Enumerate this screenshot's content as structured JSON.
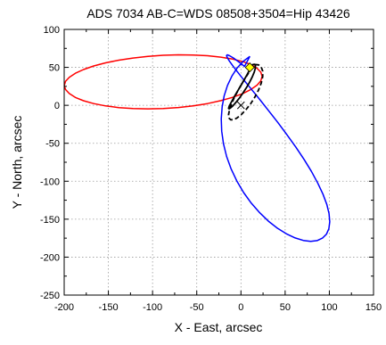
{
  "chart_data": {
    "type": "line",
    "title": "ADS 7034 AB-C=WDS 08508+3504=Hip 43426",
    "xlabel": "X - East, arcsec",
    "ylabel": "Y - North, arcsec",
    "xlim": [
      -200,
      150
    ],
    "ylim": [
      -250,
      100
    ],
    "xticks": [
      -200,
      -150,
      -100,
      -50,
      0,
      50,
      100,
      150
    ],
    "yticks": [
      -250,
      -200,
      -150,
      -100,
      -50,
      0,
      50,
      100
    ],
    "xtick_labels": [
      "-200",
      "-150",
      "-100",
      "-50",
      "0",
      "50",
      "100",
      "150"
    ],
    "ytick_labels": [
      "-250",
      "-200",
      "-150",
      "-100",
      "-50",
      "0",
      "50",
      "100"
    ],
    "grid": true,
    "series": [
      {
        "color": "#ff0000",
        "style": "solid",
        "shape": "ellipse",
        "x": [
          -199.9,
          -198.5,
          -194.3,
          -187.4,
          -178.1,
          -166.6,
          -153.2,
          -138.2,
          -122.1,
          -105.2,
          -88.0,
          -70.8,
          -53.9,
          -37.8,
          -22.8,
          -9.4,
          2.1,
          11.4,
          18.3,
          22.5,
          23.9,
          22.5,
          18.3,
          11.4,
          2.1,
          -9.4,
          -22.8,
          -37.8,
          -53.9,
          -70.8,
          -88.0,
          -105.2,
          -122.1,
          -138.2,
          -153.2,
          -166.6,
          -178.1,
          -187.4,
          -194.3,
          -198.5,
          -199.9
        ],
        "y": [
          26.0,
          31.5,
          36.9,
          42.2,
          47.2,
          51.8,
          55.9,
          59.5,
          62.3,
          64.5,
          65.9,
          66.5,
          66.3,
          65.3,
          63.5,
          60.9,
          57.6,
          53.5,
          48.8,
          43.6,
          38.1,
          32.3,
          26.6,
          20.9,
          15.5,
          10.5,
          6.1,
          2.3,
          -0.7,
          -2.9,
          -4.3,
          -4.7,
          -4.3,
          -3.0,
          -0.8,
          2.3,
          6.0,
          10.4,
          15.5,
          20.8,
          26.0
        ]
      },
      {
        "color": "#0000ff",
        "style": "solid",
        "shape": "ellipse",
        "x": [
          10.1,
          2.5,
          -4.3,
          -10.3,
          -15.2,
          -18.9,
          -21.3,
          -22.3,
          -21.8,
          -19.8,
          -16.2,
          -11.1,
          -4.6,
          3.0,
          11.7,
          21.2,
          31.1,
          41.3,
          51.5,
          61.3,
          70.5,
          78.9,
          86.2,
          92.2,
          96.7,
          99.5,
          100.5,
          99.7,
          97.1,
          92.8,
          86.9,
          79.7,
          71.3,
          62.0,
          52.1,
          42.0,
          31.8,
          22.0,
          12.8,
          4.5,
          -2.6,
          -8.4,
          -12.7,
          -15.3,
          -16.3,
          -15.5,
          -12.9,
          -8.6,
          -2.9,
          4.0,
          10.1
        ],
        "y": [
          64.5,
          57.8,
          49.1,
          38.5,
          26.3,
          12.7,
          -2.1,
          -17.8,
          -34.1,
          -50.7,
          -67.4,
          -83.9,
          -99.8,
          -114.9,
          -128.9,
          -141.5,
          -152.6,
          -161.9,
          -169.3,
          -174.7,
          -178.0,
          -179.2,
          -178.2,
          -175.0,
          -169.8,
          -162.6,
          -153.5,
          -142.7,
          -130.5,
          -117.0,
          -102.4,
          -87.0,
          -71.1,
          -54.9,
          -38.8,
          -23.0,
          -7.8,
          6.6,
          19.8,
          31.7,
          42.1,
          50.8,
          57.6,
          62.6,
          65.5,
          66.5,
          65.4,
          62.4,
          57.6,
          51.3,
          64.5
        ]
      },
      {
        "color": "#000000",
        "style": "solid",
        "shape": "ellipse",
        "x": [
          12.0,
          10.2,
          7.6,
          4.4,
          0.8,
          -2.9,
          -6.4,
          -9.5,
          -11.9,
          -13.5,
          -14.0,
          -13.4,
          -11.7,
          -9.1,
          -5.7,
          -1.8,
          2.2,
          6.2,
          9.8,
          12.8,
          15.0,
          16.3,
          16.4,
          15.4,
          13.4,
          12.0
        ],
        "y": [
          52.1,
          47.5,
          41.7,
          35.0,
          27.8,
          20.5,
          13.5,
          7.2,
          2.0,
          -1.9,
          -4.1,
          -4.7,
          -3.4,
          -0.6,
          3.8,
          9.5,
          16.1,
          23.2,
          30.5,
          37.5,
          43.7,
          48.8,
          52.3,
          54.0,
          53.7,
          52.1
        ]
      },
      {
        "color": "#000000",
        "style": "dashed",
        "shape": "ellipse",
        "x": [
          13.1,
          9.7,
          5.6,
          1.1,
          -3.3,
          -7.4,
          -10.7,
          -13.0,
          -14.0,
          -13.6,
          -11.7,
          -8.6,
          -4.4,
          0.5,
          5.8,
          11.1,
          15.9,
          20.0,
          23.0,
          24.6,
          24.6,
          23.0,
          20.0,
          16.3,
          13.1
        ],
        "y": [
          50.5,
          44.6,
          37.1,
          28.7,
          19.6,
          10.4,
          1.7,
          -6.0,
          -12.3,
          -16.7,
          -19.0,
          -19.0,
          -16.6,
          -12.1,
          -5.6,
          2.3,
          11.1,
          20.4,
          29.5,
          37.9,
          45.0,
          50.2,
          53.2,
          53.7,
          50.5
        ]
      }
    ],
    "points": [
      {
        "label": "×",
        "x": 0,
        "y": 0,
        "color": "#000000"
      },
      {
        "label": "◆",
        "x": 10,
        "y": 50,
        "color": "#ffff00"
      }
    ]
  }
}
